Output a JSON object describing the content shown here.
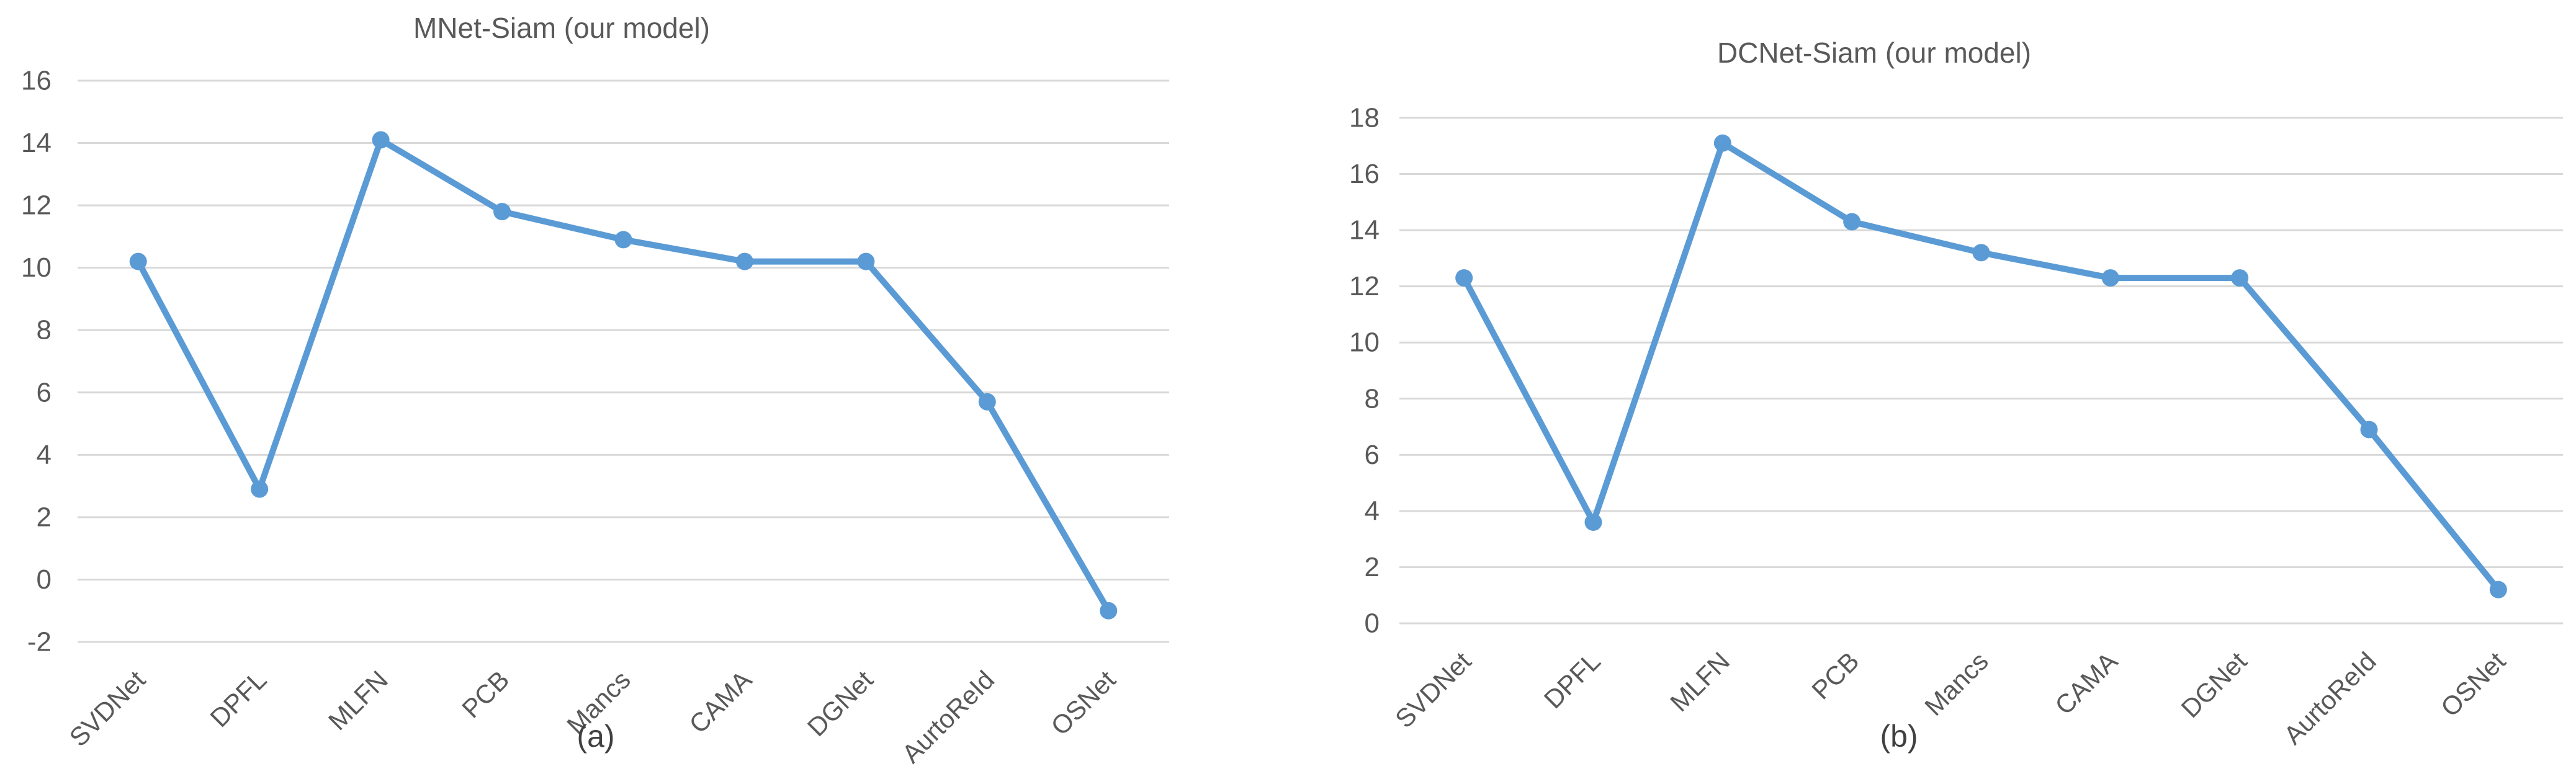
{
  "figure": {
    "background": "#ffffff",
    "accent_color": "#5b9bd5",
    "gridline_color": "#d9d9d9",
    "axis_text_color": "#595959",
    "title_color": "#595959",
    "caption_color": "#404040"
  },
  "chart_data": [
    {
      "type": "line",
      "title": "MNet-Siam (our model)",
      "caption": "(a)",
      "categories": [
        "SVDNet",
        "DPFL",
        "MLFN",
        "PCB",
        "Mancs",
        "CAMA",
        "DGNet",
        "AurtoReId",
        "OSNet"
      ],
      "series": [
        {
          "name": "MNet-Siam",
          "values": [
            10.2,
            2.9,
            14.1,
            11.8,
            10.9,
            10.2,
            10.2,
            5.7,
            -1.0
          ]
        }
      ],
      "xlabel": "",
      "ylabel": "",
      "ylim": [
        -2,
        16
      ],
      "ytick_step": 2,
      "grid": true,
      "legend": false,
      "marker": "circle"
    },
    {
      "type": "line",
      "title": "DCNet-Siam (our model)",
      "caption": "(b)",
      "categories": [
        "SVDNet",
        "DPFL",
        "MLFN",
        "PCB",
        "Mancs",
        "CAMA",
        "DGNet",
        "AurtoReId",
        "OSNet"
      ],
      "series": [
        {
          "name": "DCNet-Siam",
          "values": [
            12.3,
            3.6,
            17.1,
            14.3,
            13.2,
            12.3,
            12.3,
            6.9,
            1.2
          ]
        }
      ],
      "xlabel": "",
      "ylabel": "",
      "ylim": [
        0,
        18
      ],
      "ytick_step": 2,
      "grid": true,
      "legend": false,
      "marker": "circle"
    }
  ]
}
